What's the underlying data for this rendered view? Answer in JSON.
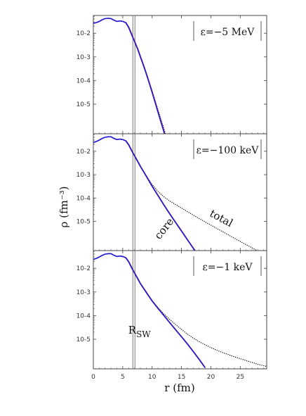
{
  "chart_data": {
    "type": "line",
    "xlabel": "r (fm)",
    "ylabel": "ρ (fm⁻³)",
    "xlim": [
      0,
      29.5
    ],
    "ylim_log10": [
      -6.25,
      -1.25
    ],
    "y_scale": "log",
    "x_ticks": [
      "0",
      "5",
      "10",
      "15",
      "20",
      "25"
    ],
    "x_tick_values": [
      0,
      5,
      10,
      15,
      20,
      25
    ],
    "y_ticks": [
      "10-2",
      "10-3",
      "10-4",
      "10-5"
    ],
    "y_tick_log10": [
      -2,
      -3,
      -4,
      -5
    ],
    "vline_x": 6.9,
    "vline_label": "R",
    "vline_label_sub": "SW",
    "colors": {
      "core": "#1a1ad9",
      "total": "#000000",
      "vline": "#777777",
      "frame": "#444444",
      "accent_red": "#cc2222"
    },
    "panels": [
      {
        "legend": "ε=−5 MeV",
        "series": [
          {
            "name": "core",
            "style": "solid",
            "x": [
              0,
              0.5,
              1,
              1.5,
              2,
              2.5,
              3,
              3.5,
              4,
              4.5,
              5,
              5.5,
              6,
              6.5,
              7,
              7.5,
              8,
              8.5,
              9,
              9.5,
              10,
              10.5,
              11,
              11.5,
              12,
              12.5
            ],
            "log10": [
              -1.58,
              -1.55,
              -1.5,
              -1.43,
              -1.38,
              -1.37,
              -1.38,
              -1.45,
              -1.5,
              -1.48,
              -1.5,
              -1.55,
              -1.75,
              -2.05,
              -2.35,
              -2.65,
              -3.0,
              -3.35,
              -3.72,
              -4.1,
              -4.5,
              -4.92,
              -5.34,
              -5.76,
              -6.17,
              -6.6
            ]
          },
          {
            "name": "total",
            "style": "dotted",
            "x": [
              0,
              0.5,
              1,
              1.5,
              2,
              2.5,
              3,
              3.5,
              4,
              4.5,
              5,
              5.5,
              6,
              6.5,
              7,
              7.5,
              8,
              8.5,
              9,
              9.5,
              10,
              10.5,
              11,
              11.5,
              12,
              12.5
            ],
            "log10": [
              -1.58,
              -1.55,
              -1.5,
              -1.43,
              -1.38,
              -1.37,
              -1.38,
              -1.45,
              -1.5,
              -1.48,
              -1.5,
              -1.55,
              -1.75,
              -2.05,
              -2.35,
              -2.65,
              -3.0,
              -3.34,
              -3.7,
              -4.06,
              -4.44,
              -4.84,
              -5.24,
              -5.64,
              -6.03,
              -6.45
            ]
          }
        ]
      },
      {
        "legend": "ε=−100 keV",
        "series": [
          {
            "name": "core",
            "style": "solid",
            "x": [
              0,
              0.5,
              1,
              1.5,
              2,
              2.5,
              3,
              3.5,
              4,
              4.5,
              5,
              5.5,
              6,
              6.5,
              7,
              7.5,
              8,
              9,
              10,
              11,
              12,
              13,
              14,
              15,
              16,
              17,
              18
            ],
            "log10": [
              -1.62,
              -1.58,
              -1.52,
              -1.45,
              -1.4,
              -1.38,
              -1.38,
              -1.45,
              -1.5,
              -1.48,
              -1.5,
              -1.55,
              -1.72,
              -1.97,
              -2.2,
              -2.42,
              -2.65,
              -3.07,
              -3.5,
              -3.9,
              -4.3,
              -4.68,
              -5.05,
              -5.42,
              -5.79,
              -6.15,
              -6.5
            ]
          },
          {
            "name": "total",
            "style": "dotted",
            "x": [
              0,
              0.5,
              1,
              1.5,
              2,
              2.5,
              3,
              3.5,
              4,
              4.5,
              5,
              5.5,
              6,
              6.5,
              7,
              7.5,
              8,
              9,
              10,
              11,
              12,
              13,
              14,
              15,
              16,
              17,
              18,
              19,
              20,
              21,
              22,
              23,
              24,
              25,
              26,
              27,
              28,
              29.5
            ],
            "log10": [
              -1.62,
              -1.58,
              -1.52,
              -1.45,
              -1.4,
              -1.38,
              -1.38,
              -1.45,
              -1.5,
              -1.48,
              -1.5,
              -1.55,
              -1.72,
              -1.97,
              -2.2,
              -2.42,
              -2.65,
              -3.05,
              -3.42,
              -3.72,
              -3.95,
              -4.13,
              -4.28,
              -4.43,
              -4.58,
              -4.73,
              -4.88,
              -5.02,
              -5.16,
              -5.3,
              -5.44,
              -5.58,
              -5.72,
              -5.86,
              -6.0,
              -6.13,
              -6.27,
              -6.45
            ]
          }
        ],
        "annotations": [
          {
            "text": "core",
            "x": 12.5,
            "log10": -5.4,
            "angle": -52
          },
          {
            "text": "total",
            "x": 21.5,
            "log10": -5.0,
            "angle": 28
          }
        ]
      },
      {
        "legend": "ε=−1 keV",
        "series": [
          {
            "name": "core",
            "style": "solid",
            "x": [
              0,
              0.5,
              1,
              1.5,
              2,
              2.5,
              3,
              3.5,
              4,
              4.5,
              5,
              5.5,
              6,
              6.5,
              7,
              7.5,
              8,
              9,
              10,
              11,
              12,
              13,
              14,
              15,
              16,
              17,
              18,
              19
            ],
            "log10": [
              -1.62,
              -1.58,
              -1.52,
              -1.45,
              -1.4,
              -1.38,
              -1.38,
              -1.45,
              -1.5,
              -1.48,
              -1.5,
              -1.55,
              -1.72,
              -1.97,
              -2.2,
              -2.42,
              -2.65,
              -3.02,
              -3.38,
              -3.7,
              -4.0,
              -4.3,
              -4.6,
              -4.9,
              -5.2,
              -5.52,
              -5.85,
              -6.2
            ]
          },
          {
            "name": "total",
            "style": "dotted",
            "x": [
              0,
              0.5,
              1,
              1.5,
              2,
              2.5,
              3,
              3.5,
              4,
              4.5,
              5,
              5.5,
              6,
              6.5,
              7,
              7.5,
              8,
              9,
              10,
              11,
              12,
              13,
              14,
              15,
              16,
              17,
              18,
              19,
              20,
              21,
              22,
              23,
              24,
              25,
              26,
              27,
              28,
              29.5
            ],
            "log10": [
              -1.62,
              -1.58,
              -1.52,
              -1.45,
              -1.4,
              -1.38,
              -1.38,
              -1.45,
              -1.5,
              -1.48,
              -1.5,
              -1.55,
              -1.72,
              -1.97,
              -2.2,
              -2.42,
              -2.65,
              -3.02,
              -3.36,
              -3.66,
              -3.93,
              -4.16,
              -4.38,
              -4.58,
              -4.78,
              -4.95,
              -5.1,
              -5.23,
              -5.35,
              -5.46,
              -5.56,
              -5.65,
              -5.74,
              -5.82,
              -5.9,
              -5.98,
              -6.06,
              -6.15
            ]
          }
        ]
      }
    ]
  }
}
